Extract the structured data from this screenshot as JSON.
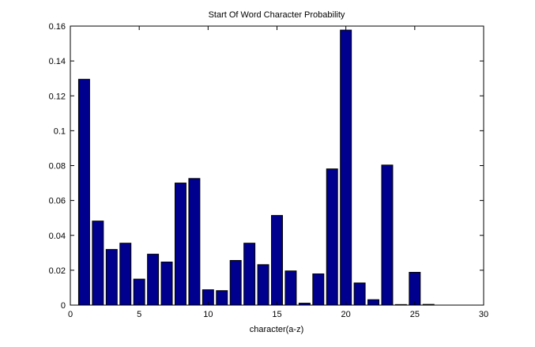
{
  "chart_data": {
    "type": "bar",
    "title": "Start Of Word Character Probability",
    "xlabel": "character(a-z)",
    "ylabel": "",
    "xlim": [
      0,
      30
    ],
    "ylim": [
      0,
      0.16
    ],
    "xticks": [
      0,
      5,
      10,
      15,
      20,
      25,
      30
    ],
    "yticks": [
      0,
      0.02,
      0.04,
      0.06,
      0.08,
      0.1,
      0.12,
      0.14,
      0.16
    ],
    "xtick_labels": [
      "0",
      "5",
      "10",
      "15",
      "20",
      "25",
      "30"
    ],
    "ytick_labels": [
      "0",
      "0.02",
      "0.04",
      "0.06",
      "0.08",
      "0.1",
      "0.12",
      "0.14",
      "0.16"
    ],
    "x": [
      1,
      2,
      3,
      4,
      5,
      6,
      7,
      8,
      9,
      10,
      11,
      12,
      13,
      14,
      15,
      16,
      17,
      18,
      19,
      20,
      21,
      22,
      23,
      24,
      25,
      26
    ],
    "values": [
      0.1295,
      0.0482,
      0.0319,
      0.0355,
      0.0149,
      0.0292,
      0.0247,
      0.07,
      0.0726,
      0.0088,
      0.0083,
      0.0256,
      0.0355,
      0.0232,
      0.0514,
      0.0196,
      0.0011,
      0.0179,
      0.0781,
      0.1577,
      0.0127,
      0.0031,
      0.0803,
      0.0003,
      0.0188,
      0.0004
    ],
    "bar_color": "#00008f",
    "grid": false,
    "legend": "none"
  }
}
